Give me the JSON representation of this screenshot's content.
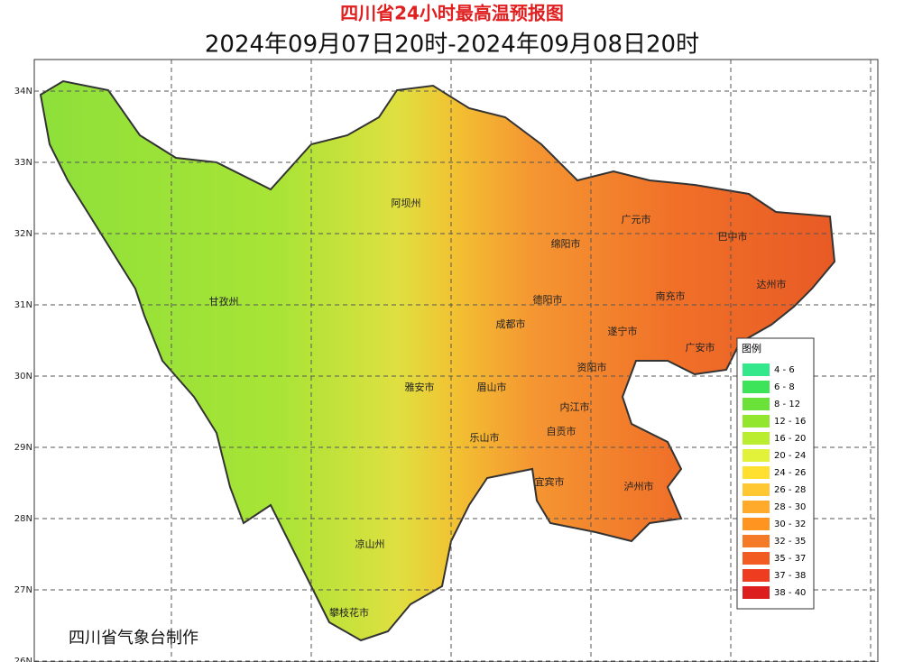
{
  "header": {
    "title": "四川省24小时最高温预报图",
    "subtitle": "2024年09月07日20时-2024年09月08日20时"
  },
  "lat_labels": [
    "34N",
    "33N",
    "32N",
    "31N",
    "30N",
    "29N",
    "28N",
    "27N",
    "26N"
  ],
  "cities": [
    "阿坝州",
    "甘孜州",
    "广元市",
    "巴中市",
    "绵阳市",
    "达州市",
    "南充市",
    "德阳市",
    "成都市",
    "遂宁市",
    "广安市",
    "资阳市",
    "雅安市",
    "眉山市",
    "内江市",
    "自贡市",
    "乐山市",
    "宜宾市",
    "泸州市",
    "凉山州",
    "攀枝花市"
  ],
  "legend": {
    "title": "图例",
    "items": [
      {
        "label": "4 - 6",
        "color": "#33e88a"
      },
      {
        "label": "6 - 8",
        "color": "#3de45a"
      },
      {
        "label": "8 - 12",
        "color": "#6ae23a"
      },
      {
        "label": "12 - 16",
        "color": "#92e62e"
      },
      {
        "label": "16 - 20",
        "color": "#baec30"
      },
      {
        "label": "20 - 24",
        "color": "#e2f23a"
      },
      {
        "label": "24 - 26",
        "color": "#ffe030"
      },
      {
        "label": "26 - 28",
        "color": "#ffc833"
      },
      {
        "label": "28 - 30",
        "color": "#ffaa2a"
      },
      {
        "label": "30 - 32",
        "color": "#ff9420"
      },
      {
        "label": "32 - 35",
        "color": "#f57a28"
      },
      {
        "label": "35 - 37",
        "color": "#f25c22"
      },
      {
        "label": "37 - 38",
        "color": "#ee3c20"
      },
      {
        "label": "38 - 40",
        "color": "#dd1e1e"
      }
    ]
  },
  "footer": "四川省气象台制作"
}
